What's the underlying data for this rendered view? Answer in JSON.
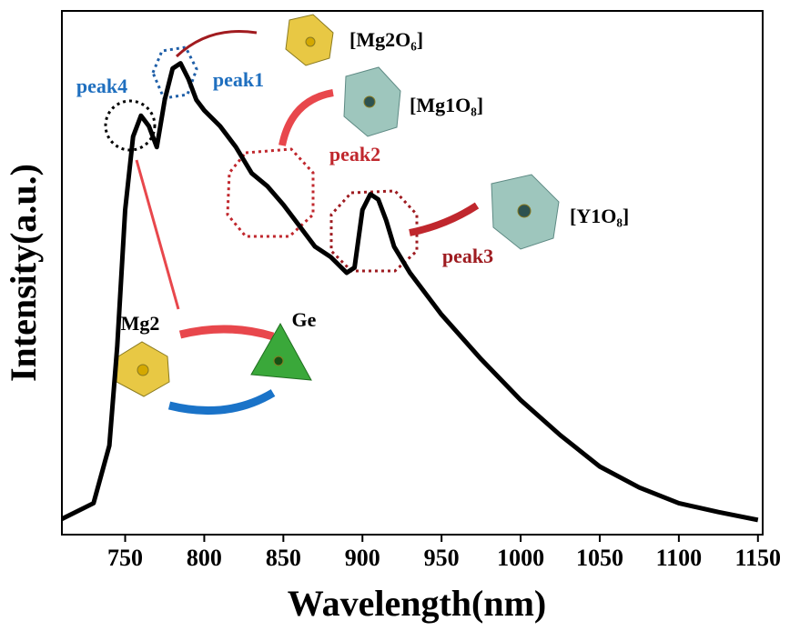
{
  "chart_data": {
    "type": "line",
    "x_label": "Wavelength(nm)",
    "y_label": "Intensity(a.u.)",
    "x": [
      710,
      730,
      740,
      745,
      750,
      755,
      760,
      765,
      770,
      775,
      780,
      785,
      790,
      795,
      800,
      810,
      820,
      830,
      840,
      850,
      860,
      870,
      880,
      890,
      895,
      900,
      905,
      910,
      915,
      920,
      930,
      950,
      975,
      1000,
      1025,
      1050,
      1075,
      1100,
      1125,
      1150
    ],
    "values": [
      0.03,
      0.06,
      0.17,
      0.36,
      0.62,
      0.76,
      0.8,
      0.78,
      0.74,
      0.83,
      0.89,
      0.9,
      0.87,
      0.83,
      0.81,
      0.78,
      0.74,
      0.69,
      0.665,
      0.63,
      0.59,
      0.55,
      0.53,
      0.5,
      0.51,
      0.62,
      0.65,
      0.64,
      0.6,
      0.55,
      0.5,
      0.42,
      0.335,
      0.257,
      0.19,
      0.13,
      0.09,
      0.06,
      0.043,
      0.028
    ],
    "color": "#000000",
    "xlim": [
      710,
      1153
    ],
    "ylim": [
      0,
      1
    ],
    "xticks": [
      750,
      800,
      850,
      900,
      950,
      1000,
      1050,
      1100,
      1150
    ],
    "annotations": [
      "peak4",
      "peak1",
      "peak2",
      "peak3",
      "[Mg2O₆]",
      "[Mg1O₈]",
      "[Y1O₈]",
      "Mg2",
      "Ge"
    ]
  }
}
